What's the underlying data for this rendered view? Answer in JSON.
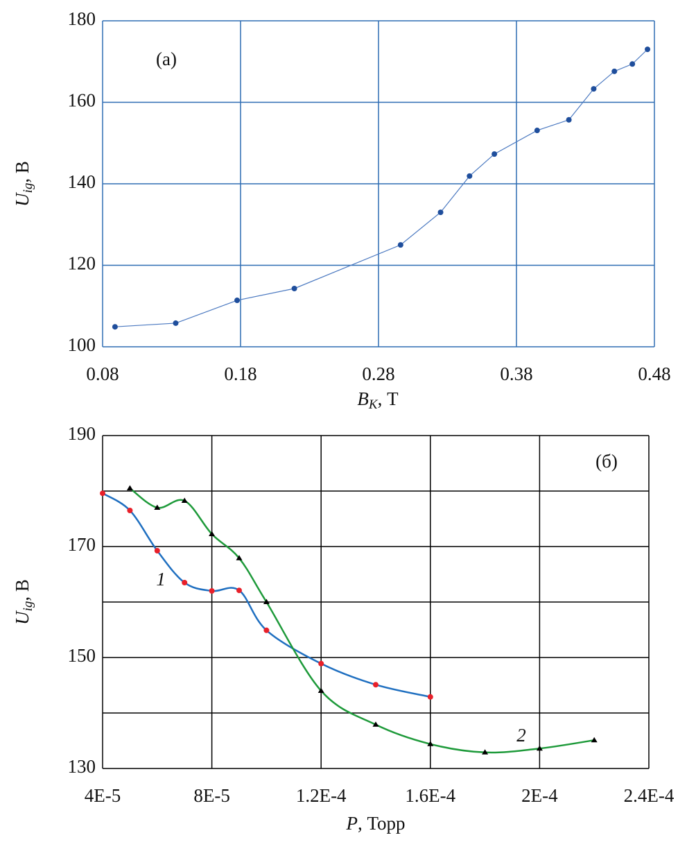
{
  "chart_data": [
    {
      "type": "line",
      "annotation": "(a)",
      "x_label": {
        "main": "B",
        "sub": "K",
        "rest": ", Т"
      },
      "y_label": {
        "main": "U",
        "sub": "ig",
        "rest": ", В"
      },
      "xlim": [
        0.08,
        0.48
      ],
      "xticks": [
        0.08,
        0.18,
        0.28,
        0.38,
        0.48
      ],
      "ylim": [
        100,
        180
      ],
      "yticks": [
        100,
        120,
        140,
        160,
        180
      ],
      "grid": true,
      "grid_color": "#2e6db4",
      "smooth": false,
      "series": [
        {
          "color": "#4a78c0",
          "marker": "circle",
          "marker_color": "#1f4e9c",
          "x": [
            0.089,
            0.133,
            0.1775,
            0.219,
            0.296,
            0.325,
            0.346,
            0.364,
            0.395,
            0.418,
            0.436,
            0.451,
            0.464,
            0.475
          ],
          "values": [
            104.9,
            105.8,
            111.4,
            114.3,
            125.0,
            133.0,
            141.9,
            147.3,
            153.1,
            155.7,
            163.3,
            167.6,
            169.4,
            173.0
          ]
        }
      ]
    },
    {
      "type": "line",
      "annotation": "(б)",
      "x_label": {
        "main": "P",
        "rest": ", Торр"
      },
      "y_label": {
        "main": "U",
        "sub": "ig",
        "rest": ", В"
      },
      "xlim": [
        4e-05,
        0.00024
      ],
      "xticks": [
        {
          "value": 4e-05,
          "label": "4E-5"
        },
        {
          "value": 8e-05,
          "label": "8E-5"
        },
        {
          "value": 0.00012,
          "label": "1.2E-4"
        },
        {
          "value": 0.00016,
          "label": "1.6E-4"
        },
        {
          "value": 0.0002,
          "label": "2E-4"
        },
        {
          "value": 0.00024,
          "label": "2.4E-4"
        }
      ],
      "ylim": [
        130,
        190
      ],
      "yticks": [
        130,
        150,
        170,
        190
      ],
      "minor_yticks": [
        140,
        160,
        180
      ],
      "grid": true,
      "grid_color": "#000000",
      "smooth": true,
      "series": [
        {
          "name": "1",
          "color": "#1f6fc0",
          "marker": "circle",
          "marker_color": "#e8202a",
          "x": [
            4e-05,
            5e-05,
            6e-05,
            7e-05,
            8e-05,
            9e-05,
            0.0001,
            0.00012,
            0.00014,
            0.00016
          ],
          "values": [
            179.6,
            176.5,
            169.25,
            163.5,
            162.0,
            162.1,
            154.9,
            148.9,
            145.1,
            142.9
          ]
        },
        {
          "name": "2",
          "color": "#1e9a3a",
          "marker": "triangle",
          "marker_color": "#000000",
          "x": [
            5e-05,
            6e-05,
            7e-05,
            8e-05,
            9e-05,
            0.0001,
            0.00012,
            0.00014,
            0.00016,
            0.00018,
            0.0002,
            0.00022
          ],
          "values": [
            180.5,
            177.0,
            178.25,
            172.25,
            167.9,
            160.0,
            144.0,
            137.9,
            134.4,
            132.9,
            133.6,
            135.1
          ]
        }
      ]
    }
  ]
}
